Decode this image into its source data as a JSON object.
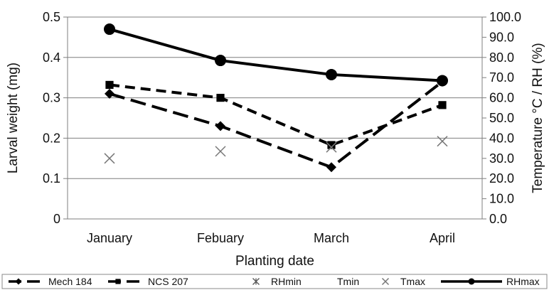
{
  "chart_data": {
    "type": "line",
    "categories": [
      "January",
      "Febuary",
      "March",
      "April"
    ],
    "xlabel": "Planting date",
    "ylabel": "Larval weight (mg)",
    "y2label": "Temperature °C / RH (%)",
    "ylim": [
      0,
      0.5
    ],
    "y2lim": [
      0,
      100
    ],
    "yticks": [
      "0",
      "0.1",
      "0.2",
      "0.3",
      "0.4",
      "0.5"
    ],
    "y2ticks": [
      "0.0",
      "10.0",
      "20.0",
      "30.0",
      "40.0",
      "50.0",
      "60.0",
      "70.0",
      "80.0",
      "90.0",
      "100.0"
    ],
    "grid": true,
    "legend_position": "bottom",
    "series": [
      {
        "name": "Mech 184",
        "axis": "left",
        "style": "dash-diamond",
        "values": [
          0.31,
          0.23,
          0.128,
          0.34
        ]
      },
      {
        "name": "NCS 207",
        "axis": "left",
        "style": "dash-square",
        "values": [
          0.332,
          0.3,
          0.183,
          0.282
        ]
      },
      {
        "name": "RHmin",
        "axis": "right",
        "style": "star",
        "values": [
          null,
          null,
          null,
          null
        ]
      },
      {
        "name": "Tmin",
        "axis": "right",
        "style": "none",
        "values": [
          null,
          null,
          null,
          null
        ]
      },
      {
        "name": "Tmax",
        "axis": "right",
        "style": "x",
        "values": [
          30,
          33.5,
          35.5,
          38.5
        ]
      },
      {
        "name": "RHmax",
        "axis": "right",
        "style": "solid-circle",
        "values": [
          94,
          78.5,
          71.5,
          68.5
        ]
      }
    ]
  }
}
